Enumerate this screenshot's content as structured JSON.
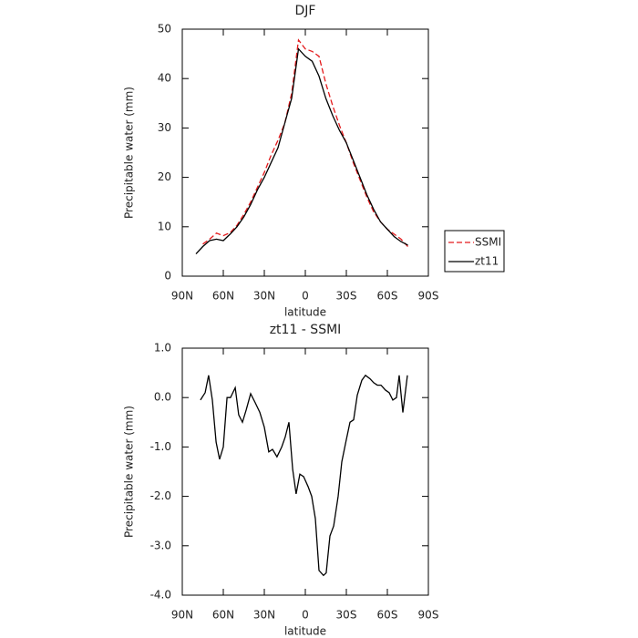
{
  "chart_data": [
    {
      "type": "line",
      "title": "DJF",
      "xlabel": "latitude",
      "ylabel": "Precipitable water (mm)",
      "x": [
        80,
        75,
        70,
        65,
        60,
        55,
        50,
        45,
        40,
        35,
        30,
        25,
        20,
        15,
        10,
        5,
        0,
        -5,
        -10,
        -15,
        -20,
        -25,
        -30,
        -35,
        -40,
        -45,
        -50,
        -55,
        -60,
        -65,
        -70,
        -75
      ],
      "series": [
        {
          "name": "SSMI",
          "color": "#e41a1c",
          "linestyle": "dashed",
          "values": [
            null,
            6.5,
            7.5,
            8.7,
            8.2,
            8.8,
            10.3,
            12.5,
            15,
            18,
            21,
            24.5,
            27.5,
            31,
            37,
            47.8,
            46,
            45.5,
            44.5,
            39,
            34.5,
            30.5,
            27,
            23,
            19.5,
            16,
            13,
            11,
            9.5,
            8.5,
            7.5,
            6
          ]
        },
        {
          "name": "zt11",
          "color": "#000000",
          "linestyle": "solid",
          "values": [
            4.5,
            6,
            7.2,
            7.5,
            7.2,
            8.5,
            10,
            12,
            14.5,
            17.5,
            20,
            23,
            26,
            31,
            36,
            46,
            44.5,
            43.5,
            40.5,
            36,
            32.5,
            29.5,
            27,
            23.5,
            20,
            16.5,
            13.5,
            11,
            9.5,
            8,
            7,
            6.3
          ]
        }
      ],
      "xlim": [
        90,
        -90
      ],
      "xticks": [
        {
          "value": 90,
          "label": "90N"
        },
        {
          "value": 60,
          "label": "60N"
        },
        {
          "value": 30,
          "label": "30N"
        },
        0,
        {
          "value": -30,
          "label": "30S"
        },
        {
          "value": -60,
          "label": "60S"
        },
        {
          "value": -90,
          "label": "90S"
        }
      ],
      "ylim": [
        0,
        50
      ],
      "yticks": [
        0,
        10,
        20,
        30,
        40,
        50
      ],
      "legend": "right"
    },
    {
      "type": "line",
      "title": "zt11 - SSMI",
      "xlabel": "latitude",
      "ylabel": "Precipitable water (mm)",
      "x": [
        76.7,
        73.3,
        70.7,
        68,
        65.3,
        62.7,
        60,
        57.3,
        54.7,
        51.3,
        48.7,
        46,
        43.3,
        40,
        36.7,
        33.3,
        30,
        26.7,
        24,
        20.7,
        17.3,
        14.7,
        12,
        9.3,
        6.7,
        4,
        1.3,
        -2,
        -4.7,
        -7.3,
        -10,
        -13.3,
        -15.3,
        -18,
        -20.7,
        -24,
        -26.7,
        -30,
        -32.7,
        -35.3,
        -38,
        -41.3,
        -44,
        -47.3,
        -50,
        -52.7,
        -55.3,
        -58.7,
        -61.3,
        -64,
        -66.7,
        -68.7,
        -71.3,
        -74.7
      ],
      "series": [
        {
          "color": "#000000",
          "linestyle": "solid",
          "values": [
            -0.05,
            0.1,
            0.45,
            -0.05,
            -0.9,
            -1.25,
            -1.0,
            0,
            0,
            0.2,
            -0.35,
            -0.5,
            -0.25,
            0.08,
            -0.1,
            -0.3,
            -0.6,
            -1.1,
            -1.05,
            -1.2,
            -1.0,
            -0.8,
            -0.5,
            -1.45,
            -1.95,
            -1.55,
            -1.6,
            -1.8,
            -2.0,
            -2.45,
            -3.5,
            -3.6,
            -3.55,
            -2.8,
            -2.6,
            -2.0,
            -1.3,
            -0.85,
            -0.5,
            -0.45,
            0.05,
            0.35,
            0.45,
            0.38,
            0.3,
            0.25,
            0.25,
            0.15,
            0.1,
            -0.05,
            0,
            0.45,
            -0.3,
            0.45
          ]
        }
      ],
      "xlim": [
        90,
        -90
      ],
      "xticks": [
        {
          "value": 90,
          "label": "90N"
        },
        {
          "value": 60,
          "label": "60N"
        },
        {
          "value": 30,
          "label": "30N"
        },
        0,
        {
          "value": -30,
          "label": "30S"
        },
        {
          "value": -60,
          "label": "60S"
        },
        {
          "value": -90,
          "label": "90S"
        }
      ],
      "ylim": [
        -4,
        1
      ],
      "yticks": [
        {
          "value": 1,
          "label": "1.0"
        },
        {
          "value": 0,
          "label": "0.0"
        },
        {
          "value": -1,
          "label": "-1.0"
        },
        {
          "value": -2,
          "label": "-2.0"
        },
        {
          "value": -3,
          "label": "-3.0"
        },
        {
          "value": -4,
          "label": "-4.0"
        }
      ]
    }
  ]
}
